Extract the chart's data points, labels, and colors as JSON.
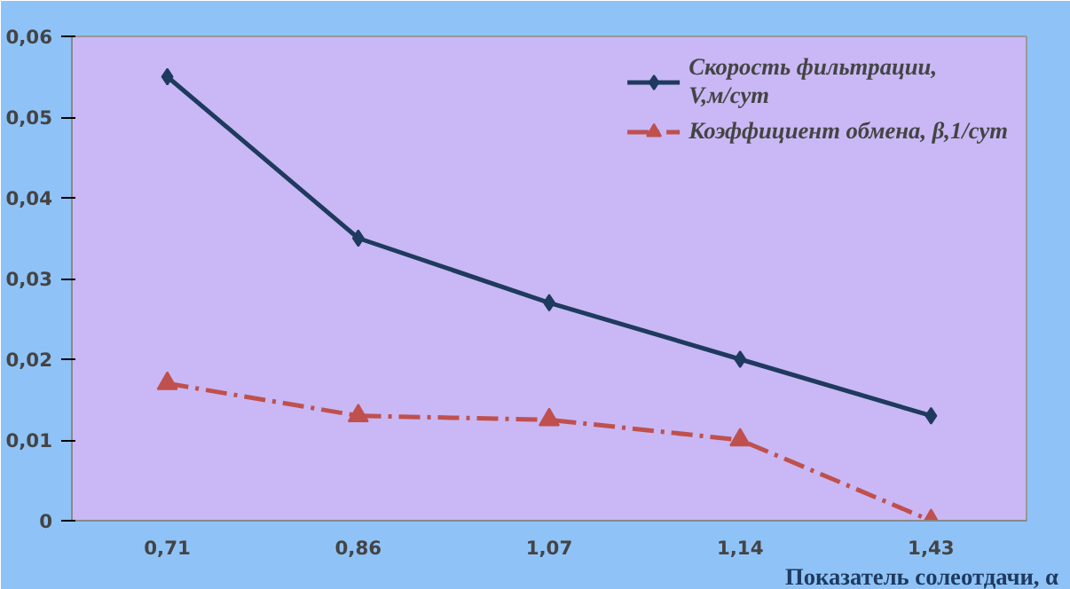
{
  "chart_data": {
    "type": "line",
    "categories": [
      "0,71",
      "0,86",
      "1,07",
      "1,14",
      "1,43"
    ],
    "xlabel": "Показатель солеотдачи, α",
    "series": [
      {
        "name": "Скорость фильтрации, V,м/сут",
        "color": "#1f3a5f",
        "marker": "diamond",
        "line_style": "solid",
        "values": [
          0.055,
          0.035,
          0.027,
          0.02,
          0.013
        ]
      },
      {
        "name": "Коэффициент обмена, β,1/сут",
        "color": "#c0504d",
        "marker": "triangle",
        "line_style": "dashed",
        "values": [
          0.017,
          0.013,
          0.0125,
          0.01,
          0
        ]
      }
    ],
    "ylim": [
      0,
      0.06
    ],
    "yticks": [
      0,
      {
        "value": 0.01,
        "label": "0,01"
      },
      {
        "value": 0.02,
        "label": "0,02"
      },
      {
        "value": 0.03,
        "label": "0,03"
      },
      {
        "value": 0.04,
        "label": "0,04"
      },
      {
        "value": 0.05,
        "label": "0,05"
      },
      {
        "value": 0.06,
        "label": "0,06"
      }
    ],
    "grid": false,
    "legend": "top right"
  }
}
